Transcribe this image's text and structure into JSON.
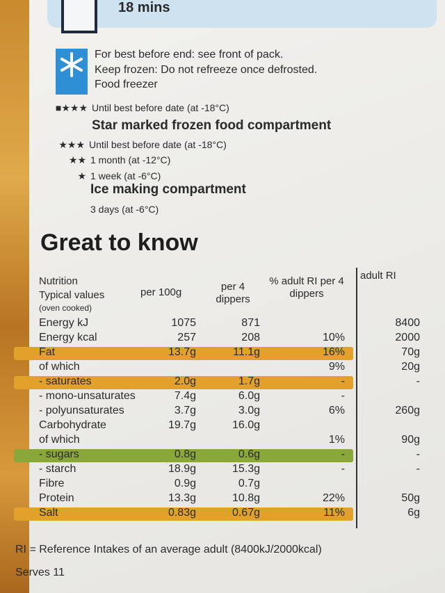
{
  "header": {
    "time": "18 mins"
  },
  "storage": [
    {
      "text": "For best before end: see front of pack.",
      "style": "st"
    },
    {
      "text": "Keep frozen: Do not refreeze once defrosted.",
      "style": "st"
    },
    {
      "text": "Food freezer",
      "style": "st"
    },
    {
      "stars": "■★★★",
      "text": "Until best before date (at -18°C)",
      "style": "sts"
    },
    {
      "text": "Star marked frozen food compartment",
      "style": "stb"
    },
    {
      "stars": "★★★",
      "text": "Until best before date (at -18°C)",
      "style": "sts"
    },
    {
      "stars": "★★",
      "text": "1 month (at -12°C)",
      "style": "sts"
    },
    {
      "stars": "★",
      "text": "1 week (at -6°C)",
      "style": "sts"
    },
    {
      "text": "Ice making compartment",
      "style": "stb"
    },
    {
      "text": "3 days (at -6°C)",
      "style": "sts"
    }
  ],
  "heading": "Great to know",
  "table": {
    "headers": {
      "nutrition": "Nutrition",
      "typical": "Typical values",
      "cooked": "(oven cooked)",
      "per100": "per 100g",
      "per4": "per 4 dippers",
      "pct": "% adult RI per 4 dippers",
      "ri": "adult RI"
    },
    "rows": [
      {
        "name": "Energy kJ",
        "per100": "1075",
        "per4": "871",
        "pct": null,
        "ri": "8400"
      },
      {
        "name": "Energy kcal",
        "per100": "257",
        "per4": "208",
        "pct": "10%",
        "ri": "2000"
      },
      {
        "name": "Fat",
        "per100": "13.7g",
        "per4": "11.1g",
        "pct": "16%",
        "ri": "70g",
        "highlight": "#e2a12a"
      },
      {
        "name": "of which",
        "per100": null,
        "per4": null,
        "pct": "9%",
        "ri": "20g"
      },
      {
        "name": "- saturates",
        "per100": "2.0g",
        "per4": "1.7g",
        "pct": "-",
        "ri": "-",
        "highlight": "#e2a12a"
      },
      {
        "name": "- mono-unsaturates",
        "per100": "7.4g",
        "per4": "6.0g",
        "pct": "-",
        "ri": null
      },
      {
        "name": "- polyunsaturates",
        "per100": "3.7g",
        "per4": "3.0g",
        "pct": "6%",
        "ri": "260g"
      },
      {
        "name": "Carbohydrate",
        "per100": "19.7g",
        "per4": "16.0g",
        "pct": null,
        "ri": null
      },
      {
        "name": "of which",
        "per100": null,
        "per4": null,
        "pct": "1%",
        "ri": "90g"
      },
      {
        "name": "- sugars",
        "per100": "0.8g",
        "per4": "0.6g",
        "pct": "-",
        "ri": "-",
        "highlight": "#8aa83a"
      },
      {
        "name": "- starch",
        "per100": "18.9g",
        "per4": "15.3g",
        "pct": "-",
        "ri": "-"
      },
      {
        "name": "Fibre",
        "per100": "0.9g",
        "per4": "0.7g",
        "pct": null,
        "ri": null
      },
      {
        "name": "Protein",
        "per100": "13.3g",
        "per4": "10.8g",
        "pct": "22%",
        "ri": "50g"
      },
      {
        "name": "Salt",
        "per100": "0.83g",
        "per4": "0.67g",
        "pct": "11%",
        "ri": "6g",
        "highlight": "#e2a12a"
      }
    ]
  },
  "footer": {
    "note": "RI = Reference Intakes of an average adult (8400kJ/2000kcal)",
    "serves": "Serves 11"
  }
}
